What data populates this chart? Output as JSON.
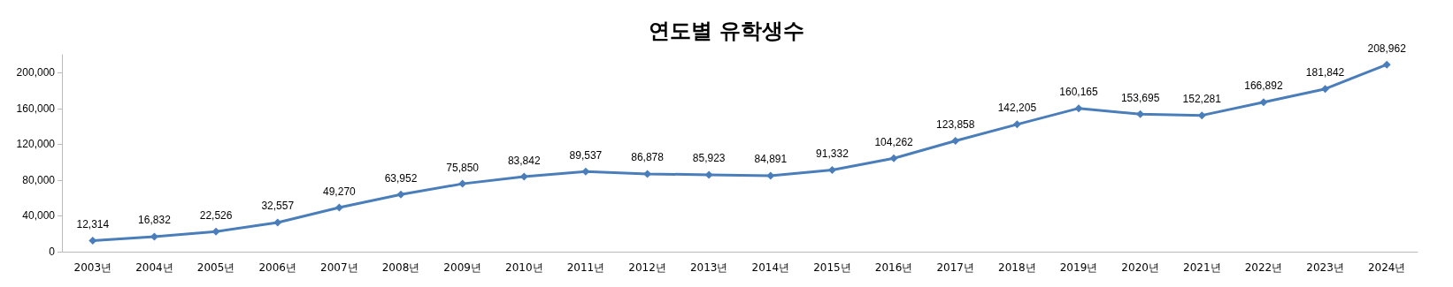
{
  "chart_data": {
    "type": "line",
    "title": "연도별 유학생수",
    "categories": [
      "2003년",
      "2004년",
      "2005년",
      "2006년",
      "2007년",
      "2008년",
      "2009년",
      "2010년",
      "2011년",
      "2012년",
      "2013년",
      "2014년",
      "2015년",
      "2016년",
      "2017년",
      "2018년",
      "2019년",
      "2020년",
      "2021년",
      "2022년",
      "2023년",
      "2024년"
    ],
    "series": [
      {
        "color": "#4a7ebb",
        "values": [
          12314,
          16832,
          22526,
          32557,
          49270,
          63952,
          75850,
          83842,
          89537,
          86878,
          85923,
          84891,
          91332,
          104262,
          123858,
          142205,
          160165,
          153695,
          152281,
          166892,
          181842,
          208962
        ],
        "value_labels": [
          "12,314",
          "16,832",
          "22,526",
          "32,557",
          "49,270",
          "63,952",
          "75,850",
          "83,842",
          "89,537",
          "86,878",
          "85,923",
          "84,891",
          "91,332",
          "104,262",
          "123,858",
          "142,205",
          "160,165",
          "153,695",
          "152,281",
          "166,892",
          "181,842",
          "208,962"
        ]
      }
    ],
    "ylim": [
      0,
      220000
    ],
    "yticks": [
      0,
      {
        "value": 40000,
        "label": "40,000"
      },
      {
        "value": 80000,
        "label": "80,000"
      },
      {
        "value": 120000,
        "label": "120,000"
      },
      {
        "value": 160000,
        "label": "160,000"
      },
      {
        "value": 200000,
        "label": "200,000"
      }
    ],
    "grid": false,
    "marker": "diamond",
    "line_style": "solid"
  }
}
